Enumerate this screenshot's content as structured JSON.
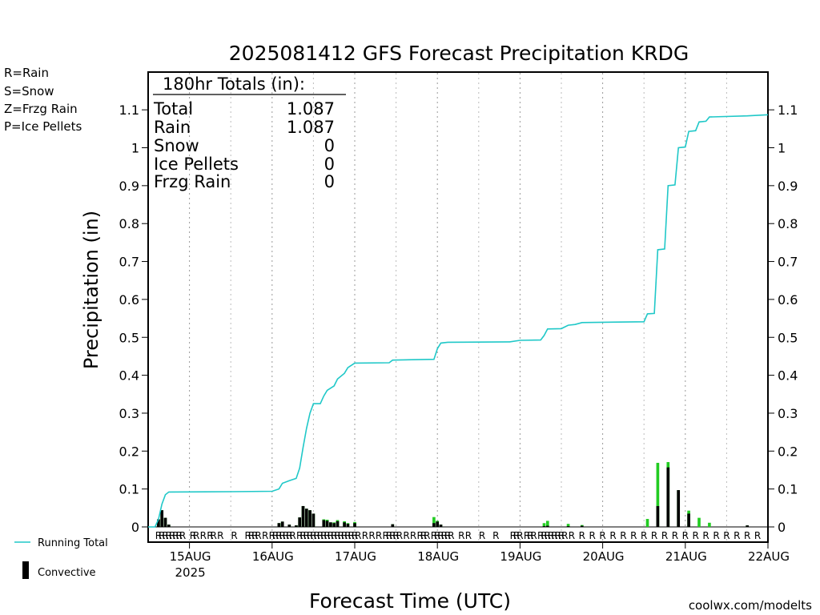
{
  "legend_codes": [
    {
      "text": "R=Rain",
      "color": "#22cc22"
    },
    {
      "text": "S=Snow",
      "color": "#3355ee"
    },
    {
      "text": "Z=Frzg Rain",
      "color": "#ee8833"
    },
    {
      "text": "P=Ice Pellets",
      "color": "#ee2299"
    }
  ],
  "legend_series": {
    "running_total": "Running Total",
    "convective": "Convective"
  },
  "totals": {
    "header": "180hr Totals (in):",
    "rows": [
      {
        "label": "Total",
        "value": "1.087"
      },
      {
        "label": "Rain",
        "value": "1.087"
      },
      {
        "label": "Snow",
        "value": "0"
      },
      {
        "label": "Ice Pellets",
        "value": "0"
      },
      {
        "label": "Frzg Rain",
        "value": "0"
      }
    ]
  },
  "credit": "coolwx.com/modelts",
  "colors": {
    "running_total": "#20c8c8",
    "precip_bar": "#22cc22",
    "convective_bar": "#000000",
    "rain_code": "#22cc22",
    "grid": "#999999"
  },
  "chart_data": {
    "type": "bar",
    "title": "2025081412 GFS Forecast Precipitation KRDG",
    "xlabel": "Forecast Time (UTC)",
    "ylabel": "Precipitation (in)",
    "ylim": [
      0,
      1.2
    ],
    "yticks": [
      "0",
      "0.1",
      "0.2",
      "0.3",
      "0.4",
      "0.5",
      "0.6",
      "0.7",
      "0.8",
      "0.9",
      "1",
      "1.1"
    ],
    "xlim": [
      "2025-08-14 12:00",
      "2025-08-22 00:00"
    ],
    "xticks": [
      {
        "label": "15AUG",
        "sub": "2025",
        "time": "2025-08-15 00:00"
      },
      {
        "label": "16AUG",
        "sub": "",
        "time": "2025-08-16 00:00"
      },
      {
        "label": "17AUG",
        "sub": "",
        "time": "2025-08-17 00:00"
      },
      {
        "label": "18AUG",
        "sub": "",
        "time": "2025-08-18 00:00"
      },
      {
        "label": "19AUG",
        "sub": "",
        "time": "2025-08-19 00:00"
      },
      {
        "label": "20AUG",
        "sub": "",
        "time": "2025-08-20 00:00"
      },
      {
        "label": "21AUG",
        "sub": "",
        "time": "2025-08-21 00:00"
      },
      {
        "label": "22AUG",
        "sub": "",
        "time": "2025-08-22 00:00"
      }
    ],
    "grid": true,
    "series": [
      {
        "name": "Running Total",
        "type": "line",
        "points": [
          [
            "2025-08-14 12:00",
            0
          ],
          [
            "2025-08-14 14:00",
            0.0
          ],
          [
            "2025-08-14 15:00",
            0.02
          ],
          [
            "2025-08-14 16:00",
            0.06
          ],
          [
            "2025-08-14 17:00",
            0.085
          ],
          [
            "2025-08-14 18:00",
            0.092
          ],
          [
            "2025-08-15 12:00",
            0.093
          ],
          [
            "2025-08-16 00:00",
            0.094
          ],
          [
            "2025-08-16 02:00",
            0.1
          ],
          [
            "2025-08-16 03:00",
            0.115
          ],
          [
            "2025-08-16 05:00",
            0.122
          ],
          [
            "2025-08-16 07:00",
            0.128
          ],
          [
            "2025-08-16 08:00",
            0.155
          ],
          [
            "2025-08-16 09:00",
            0.21
          ],
          [
            "2025-08-16 10:00",
            0.26
          ],
          [
            "2025-08-16 11:00",
            0.3
          ],
          [
            "2025-08-16 12:00",
            0.325
          ],
          [
            "2025-08-16 14:00",
            0.325
          ],
          [
            "2025-08-16 15:00",
            0.345
          ],
          [
            "2025-08-16 16:00",
            0.36
          ],
          [
            "2025-08-16 18:00",
            0.372
          ],
          [
            "2025-08-16 19:00",
            0.39
          ],
          [
            "2025-08-16 21:00",
            0.405
          ],
          [
            "2025-08-16 22:00",
            0.42
          ],
          [
            "2025-08-17 00:00",
            0.432
          ],
          [
            "2025-08-17 10:00",
            0.433
          ],
          [
            "2025-08-17 11:00",
            0.44
          ],
          [
            "2025-08-17 23:00",
            0.442
          ],
          [
            "2025-08-18 00:00",
            0.47
          ],
          [
            "2025-08-18 01:00",
            0.485
          ],
          [
            "2025-08-18 03:00",
            0.487
          ],
          [
            "2025-08-18 21:00",
            0.488
          ],
          [
            "2025-08-19 00:00",
            0.492
          ],
          [
            "2025-08-19 06:00",
            0.493
          ],
          [
            "2025-08-19 07:00",
            0.505
          ],
          [
            "2025-08-19 08:00",
            0.522
          ],
          [
            "2025-08-19 12:00",
            0.523
          ],
          [
            "2025-08-19 14:00",
            0.532
          ],
          [
            "2025-08-19 16:00",
            0.534
          ],
          [
            "2025-08-19 18:00",
            0.539
          ],
          [
            "2025-08-20 12:00",
            0.541
          ],
          [
            "2025-08-20 13:00",
            0.562
          ],
          [
            "2025-08-20 15:00",
            0.563
          ],
          [
            "2025-08-20 16:00",
            0.731
          ],
          [
            "2025-08-20 18:00",
            0.733
          ],
          [
            "2025-08-20 19:00",
            0.9
          ],
          [
            "2025-08-20 21:00",
            0.902
          ],
          [
            "2025-08-20 22:00",
            1.0
          ],
          [
            "2025-08-21 00:00",
            1.002
          ],
          [
            "2025-08-21 01:00",
            1.043
          ],
          [
            "2025-08-21 03:00",
            1.045
          ],
          [
            "2025-08-21 04:00",
            1.068
          ],
          [
            "2025-08-21 06:00",
            1.07
          ],
          [
            "2025-08-21 07:00",
            1.081
          ],
          [
            "2025-08-21 18:00",
            1.084
          ],
          [
            "2025-08-22 00:00",
            1.087
          ]
        ]
      }
    ],
    "bars": [
      {
        "time": "2025-08-14 15:00",
        "total": 0.02,
        "convective": 0.02
      },
      {
        "time": "2025-08-14 16:00",
        "total": 0.044,
        "convective": 0.044
      },
      {
        "time": "2025-08-14 17:00",
        "total": 0.024,
        "convective": 0.024
      },
      {
        "time": "2025-08-14 18:00",
        "total": 0.006,
        "convective": 0.006
      },
      {
        "time": "2025-08-16 02:00",
        "total": 0.01,
        "convective": 0.01
      },
      {
        "time": "2025-08-16 03:00",
        "total": 0.014,
        "convective": 0.014
      },
      {
        "time": "2025-08-16 05:00",
        "total": 0.006,
        "convective": 0.006
      },
      {
        "time": "2025-08-16 07:00",
        "total": 0.004,
        "convective": 0.004
      },
      {
        "time": "2025-08-16 08:00",
        "total": 0.025,
        "convective": 0.025
      },
      {
        "time": "2025-08-16 09:00",
        "total": 0.055,
        "convective": 0.055
      },
      {
        "time": "2025-08-16 10:00",
        "total": 0.048,
        "convective": 0.048
      },
      {
        "time": "2025-08-16 11:00",
        "total": 0.044,
        "convective": 0.044
      },
      {
        "time": "2025-08-16 12:00",
        "total": 0.035,
        "convective": 0.035
      },
      {
        "time": "2025-08-16 15:00",
        "total": 0.02,
        "convective": 0.018
      },
      {
        "time": "2025-08-16 16:00",
        "total": 0.019,
        "convective": 0.016
      },
      {
        "time": "2025-08-16 17:00",
        "total": 0.012,
        "convective": 0.012
      },
      {
        "time": "2025-08-16 18:00",
        "total": 0.012,
        "convective": 0.01
      },
      {
        "time": "2025-08-16 19:00",
        "total": 0.018,
        "convective": 0.015
      },
      {
        "time": "2025-08-16 21:00",
        "total": 0.015,
        "convective": 0.012
      },
      {
        "time": "2025-08-16 22:00",
        "total": 0.01,
        "convective": 0.008
      },
      {
        "time": "2025-08-17 00:00",
        "total": 0.013,
        "convective": 0.01
      },
      {
        "time": "2025-08-17 11:00",
        "total": 0.007,
        "convective": 0.007
      },
      {
        "time": "2025-08-17 23:00",
        "total": 0.026,
        "convective": 0.01
      },
      {
        "time": "2025-08-18 00:00",
        "total": 0.016,
        "convective": 0.014
      },
      {
        "time": "2025-08-18 01:00",
        "total": 0.006,
        "convective": 0.006
      },
      {
        "time": "2025-08-19 07:00",
        "total": 0.01,
        "convective": 0.002
      },
      {
        "time": "2025-08-19 08:00",
        "total": 0.016,
        "convective": 0.003
      },
      {
        "time": "2025-08-19 14:00",
        "total": 0.008,
        "convective": 0.002
      },
      {
        "time": "2025-08-19 18:00",
        "total": 0.005,
        "convective": 0.003
      },
      {
        "time": "2025-08-20 13:00",
        "total": 0.021,
        "convective": 0.0
      },
      {
        "time": "2025-08-20 16:00",
        "total": 0.169,
        "convective": 0.055
      },
      {
        "time": "2025-08-20 19:00",
        "total": 0.171,
        "convective": 0.157
      },
      {
        "time": "2025-08-20 22:00",
        "total": 0.097,
        "convective": 0.097
      },
      {
        "time": "2025-08-21 01:00",
        "total": 0.043,
        "convective": 0.035
      },
      {
        "time": "2025-08-21 04:00",
        "total": 0.024,
        "convective": 0.0
      },
      {
        "time": "2025-08-21 07:00",
        "total": 0.011,
        "convective": 0.0
      },
      {
        "time": "2025-08-21 18:00",
        "total": 0.004,
        "convective": 0.004
      }
    ],
    "ptype_codes": [
      {
        "time": "2025-08-14 15:00",
        "code": "R"
      },
      {
        "time": "2025-08-14 16:00",
        "code": "R"
      },
      {
        "time": "2025-08-14 17:00",
        "code": "R"
      },
      {
        "time": "2025-08-14 18:00",
        "code": "R"
      },
      {
        "time": "2025-08-14 19:00",
        "code": "R"
      },
      {
        "time": "2025-08-14 20:00",
        "code": "R"
      },
      {
        "time": "2025-08-14 21:00",
        "code": "R"
      },
      {
        "time": "2025-08-14 22:00",
        "code": "R"
      },
      {
        "time": "2025-08-15 01:00",
        "code": "R"
      },
      {
        "time": "2025-08-15 02:00",
        "code": "R"
      },
      {
        "time": "2025-08-15 04:00",
        "code": "R"
      },
      {
        "time": "2025-08-15 06:00",
        "code": "R"
      },
      {
        "time": "2025-08-15 07:00",
        "code": "R"
      },
      {
        "time": "2025-08-15 09:00",
        "code": "R"
      },
      {
        "time": "2025-08-15 13:00",
        "code": "R"
      },
      {
        "time": "2025-08-15 17:00",
        "code": "R"
      },
      {
        "time": "2025-08-15 18:00",
        "code": "R"
      },
      {
        "time": "2025-08-15 19:00",
        "code": "R"
      },
      {
        "time": "2025-08-15 20:00",
        "code": "R"
      },
      {
        "time": "2025-08-15 22:00",
        "code": "R"
      },
      {
        "time": "2025-08-16 00:00",
        "code": "R"
      },
      {
        "time": "2025-08-16 01:00",
        "code": "R"
      },
      {
        "time": "2025-08-16 02:00",
        "code": "R"
      },
      {
        "time": "2025-08-16 03:00",
        "code": "R"
      },
      {
        "time": "2025-08-16 04:00",
        "code": "R"
      },
      {
        "time": "2025-08-16 05:00",
        "code": "R"
      },
      {
        "time": "2025-08-16 06:00",
        "code": "R"
      },
      {
        "time": "2025-08-16 08:00",
        "code": "R"
      },
      {
        "time": "2025-08-16 09:00",
        "code": "R"
      },
      {
        "time": "2025-08-16 10:00",
        "code": "R"
      },
      {
        "time": "2025-08-16 11:00",
        "code": "R"
      },
      {
        "time": "2025-08-16 12:00",
        "code": "R"
      },
      {
        "time": "2025-08-16 13:00",
        "code": "R"
      },
      {
        "time": "2025-08-16 14:00",
        "code": "R"
      },
      {
        "time": "2025-08-16 15:00",
        "code": "R"
      },
      {
        "time": "2025-08-16 16:00",
        "code": "R"
      },
      {
        "time": "2025-08-16 17:00",
        "code": "R"
      },
      {
        "time": "2025-08-16 18:00",
        "code": "R"
      },
      {
        "time": "2025-08-16 19:00",
        "code": "R"
      },
      {
        "time": "2025-08-16 20:00",
        "code": "R"
      },
      {
        "time": "2025-08-16 21:00",
        "code": "R"
      },
      {
        "time": "2025-08-16 22:00",
        "code": "R"
      },
      {
        "time": "2025-08-16 23:00",
        "code": "R"
      },
      {
        "time": "2025-08-17 00:00",
        "code": "R"
      },
      {
        "time": "2025-08-17 01:00",
        "code": "R"
      },
      {
        "time": "2025-08-17 03:00",
        "code": "R"
      },
      {
        "time": "2025-08-17 05:00",
        "code": "R"
      },
      {
        "time": "2025-08-17 07:00",
        "code": "R"
      },
      {
        "time": "2025-08-17 09:00",
        "code": "R"
      },
      {
        "time": "2025-08-17 10:00",
        "code": "R"
      },
      {
        "time": "2025-08-17 11:00",
        "code": "R"
      },
      {
        "time": "2025-08-17 12:00",
        "code": "R"
      },
      {
        "time": "2025-08-17 13:00",
        "code": "R"
      },
      {
        "time": "2025-08-17 15:00",
        "code": "R"
      },
      {
        "time": "2025-08-17 17:00",
        "code": "R"
      },
      {
        "time": "2025-08-17 19:00",
        "code": "R"
      },
      {
        "time": "2025-08-17 20:00",
        "code": "R"
      },
      {
        "time": "2025-08-17 21:00",
        "code": "R"
      },
      {
        "time": "2025-08-17 23:00",
        "code": "R"
      },
      {
        "time": "2025-08-18 00:00",
        "code": "R"
      },
      {
        "time": "2025-08-18 01:00",
        "code": "R"
      },
      {
        "time": "2025-08-18 02:00",
        "code": "R"
      },
      {
        "time": "2025-08-18 03:00",
        "code": "R"
      },
      {
        "time": "2025-08-18 04:00",
        "code": "R"
      },
      {
        "time": "2025-08-18 07:00",
        "code": "R"
      },
      {
        "time": "2025-08-18 09:00",
        "code": "R"
      },
      {
        "time": "2025-08-18 13:00",
        "code": "R"
      },
      {
        "time": "2025-08-18 17:00",
        "code": "R"
      },
      {
        "time": "2025-08-18 22:00",
        "code": "R"
      },
      {
        "time": "2025-08-18 23:00",
        "code": "R"
      },
      {
        "time": "2025-08-19 00:00",
        "code": "R"
      },
      {
        "time": "2025-08-19 02:00",
        "code": "R"
      },
      {
        "time": "2025-08-19 03:00",
        "code": "R"
      },
      {
        "time": "2025-08-19 04:00",
        "code": "R"
      },
      {
        "time": "2025-08-19 06:00",
        "code": "R"
      },
      {
        "time": "2025-08-19 07:00",
        "code": "R"
      },
      {
        "time": "2025-08-19 08:00",
        "code": "R"
      },
      {
        "time": "2025-08-19 09:00",
        "code": "R"
      },
      {
        "time": "2025-08-19 10:00",
        "code": "R"
      },
      {
        "time": "2025-08-19 11:00",
        "code": "R"
      },
      {
        "time": "2025-08-19 12:00",
        "code": "R"
      },
      {
        "time": "2025-08-19 13:00",
        "code": "R"
      },
      {
        "time": "2025-08-19 15:00",
        "code": "R"
      },
      {
        "time": "2025-08-19 18:00",
        "code": "R"
      },
      {
        "time": "2025-08-19 21:00",
        "code": "R"
      },
      {
        "time": "2025-08-20 00:00",
        "code": "R"
      },
      {
        "time": "2025-08-20 03:00",
        "code": "R"
      },
      {
        "time": "2025-08-20 06:00",
        "code": "R"
      },
      {
        "time": "2025-08-20 09:00",
        "code": "R"
      },
      {
        "time": "2025-08-20 12:00",
        "code": "R"
      },
      {
        "time": "2025-08-20 15:00",
        "code": "R"
      },
      {
        "time": "2025-08-20 18:00",
        "code": "R"
      },
      {
        "time": "2025-08-20 21:00",
        "code": "R"
      },
      {
        "time": "2025-08-21 00:00",
        "code": "R"
      },
      {
        "time": "2025-08-21 03:00",
        "code": "R"
      },
      {
        "time": "2025-08-21 06:00",
        "code": "R"
      },
      {
        "time": "2025-08-21 09:00",
        "code": "R"
      },
      {
        "time": "2025-08-21 12:00",
        "code": "R"
      },
      {
        "time": "2025-08-21 15:00",
        "code": "R"
      },
      {
        "time": "2025-08-21 18:00",
        "code": "R"
      },
      {
        "time": "2025-08-21 21:00",
        "code": "R"
      }
    ]
  }
}
